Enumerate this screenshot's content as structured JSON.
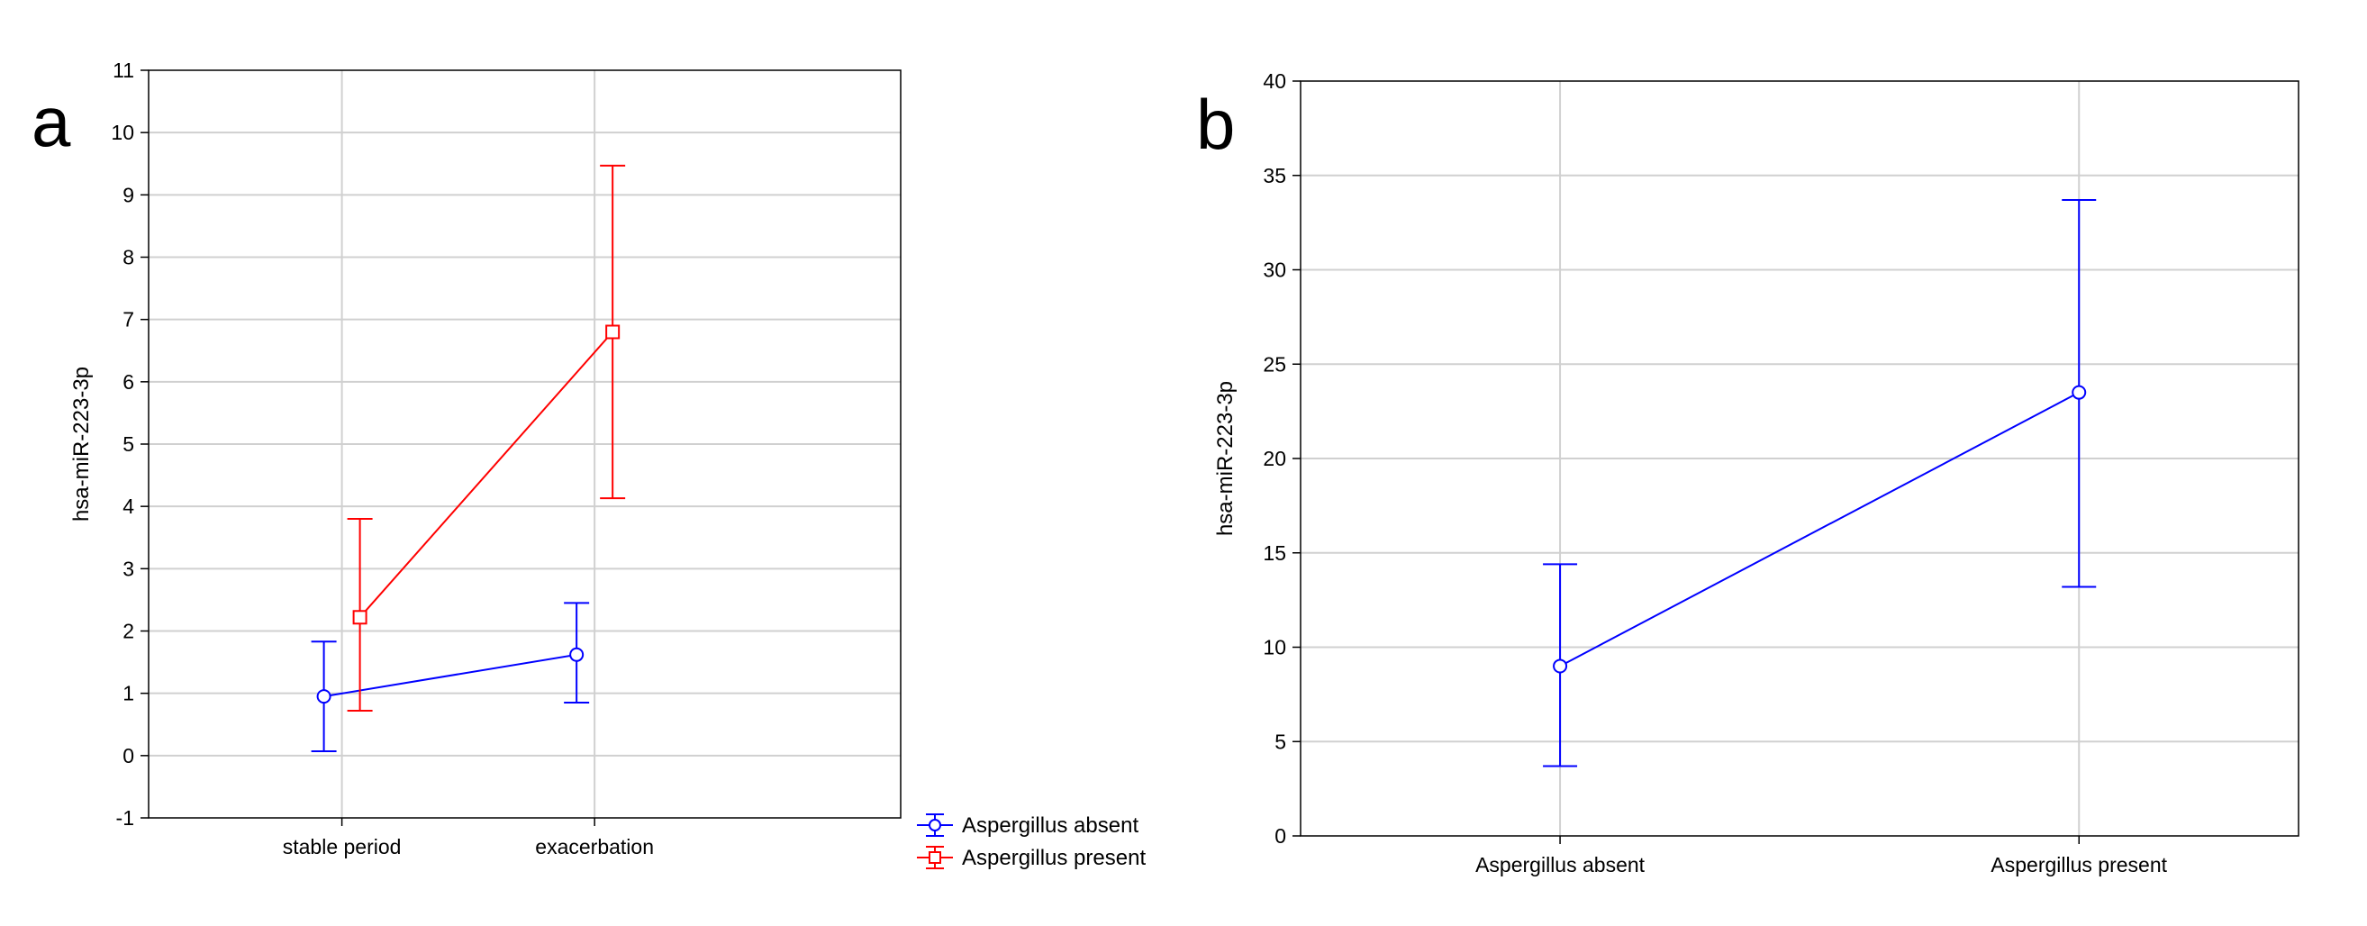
{
  "chart_data": [
    {
      "panel": "a",
      "type": "line",
      "ylabel": "hsa-miR-223-3p",
      "xlabel": "",
      "categories": [
        "stable period",
        "exacerbation"
      ],
      "ylim": [
        -1,
        11
      ],
      "yticks": [
        -1,
        0,
        1,
        2,
        3,
        4,
        5,
        6,
        7,
        8,
        9,
        10,
        11
      ],
      "grid": true,
      "legend_position": "bottom-right-outside",
      "series": [
        {
          "name": "Aspergillus absent",
          "color": "#0000ff",
          "marker": "circle",
          "values": [
            0.95,
            1.62
          ],
          "lower": [
            0.07,
            0.85
          ],
          "upper": [
            1.83,
            2.45
          ]
        },
        {
          "name": "Aspergillus present",
          "color": "#ff0000",
          "marker": "square",
          "values": [
            2.22,
            6.8
          ],
          "lower": [
            0.72,
            4.13
          ],
          "upper": [
            3.8,
            9.47
          ]
        }
      ]
    },
    {
      "panel": "b",
      "type": "line",
      "ylabel": "hsa-miR-223-3p",
      "xlabel": "",
      "categories": [
        "Aspergillus absent",
        "Aspergillus present"
      ],
      "ylim": [
        0,
        40
      ],
      "yticks": [
        0,
        5,
        10,
        15,
        20,
        25,
        30,
        35,
        40
      ],
      "grid": true,
      "series": [
        {
          "color": "#0000ff",
          "marker": "circle",
          "values": [
            9.0,
            23.5
          ],
          "lower": [
            3.7,
            13.2
          ],
          "upper": [
            14.4,
            33.7
          ]
        }
      ]
    }
  ]
}
